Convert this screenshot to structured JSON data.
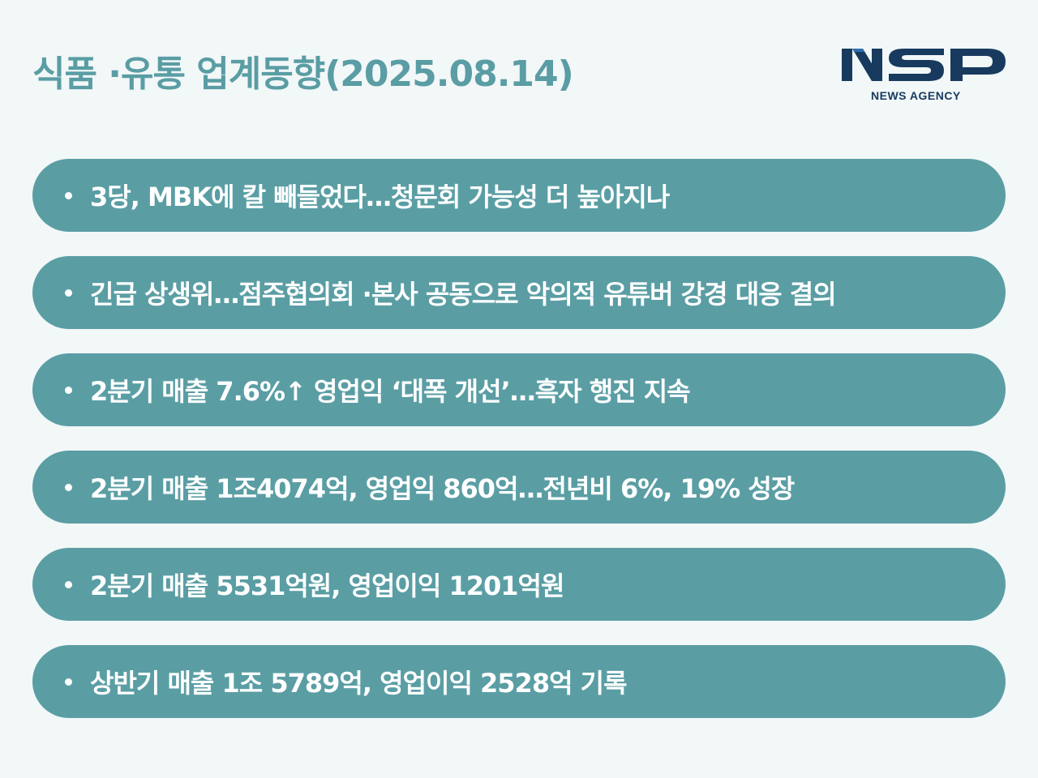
{
  "header": {
    "title": "식품 ·유통 업계동향(2025.08.14)"
  },
  "logo": {
    "wordmark": "NSP",
    "subtitle": "NEWS AGENCY",
    "color": "#173a5e"
  },
  "news": [
    "3당, MBK에 칼 빼들었다…청문회 가능성 더 높아지나",
    "긴급 상생위…점주협의회 ·본사 공동으로 악의적 유튜버 강경 대응 결의",
    "2분기 매출 7.6%↑ 영업익 ‘대폭 개선’…흑자 행진 지속",
    "2분기 매출 1조4074억, 영업익 860억…전년비 6%, 19% 성장",
    "2분기 매출 5531억원, 영업이익 1201억원",
    "상반기 매출 1조 5789억, 영업이익 2528억 기록"
  ],
  "colors": {
    "background": "#f2f7f8",
    "accent": "#5a9ea4",
    "text_on_accent": "#ffffff"
  }
}
